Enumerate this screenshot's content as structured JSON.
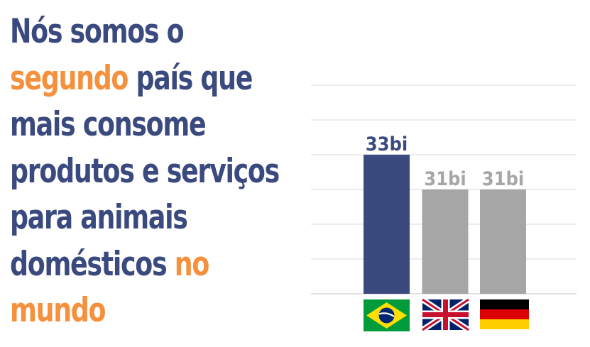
{
  "headline": {
    "line1": "Nós somos o",
    "line2_highlight": "segundo",
    "line2_rest": " país que",
    "line3": "mais consome",
    "line4": "produtos e serviços",
    "line5": "para animais",
    "line6_rest": "domésticos ",
    "line6_highlight": "no",
    "line7_highlight": "mundo"
  },
  "colors": {
    "primary": "#3b4a7e",
    "accent": "#f5903d",
    "secondary_bar": "#a6a6a6",
    "grid": "#d9d9d9"
  },
  "chart_data": {
    "type": "bar",
    "categories": [
      "brazil-flag",
      "uk-flag",
      "germany-flag"
    ],
    "values": [
      33,
      31,
      31
    ],
    "data_labels": [
      "33bi",
      "31bi",
      "31bi"
    ],
    "bar_colors": [
      "#3b4a7e",
      "#a6a6a6",
      "#a6a6a6"
    ],
    "label_colors": [
      "#3b4a7e",
      "#a6a6a6",
      "#a6a6a6"
    ],
    "ylim": [
      25,
      37
    ],
    "grid": true,
    "title": "",
    "xlabel": "",
    "ylabel": ""
  }
}
